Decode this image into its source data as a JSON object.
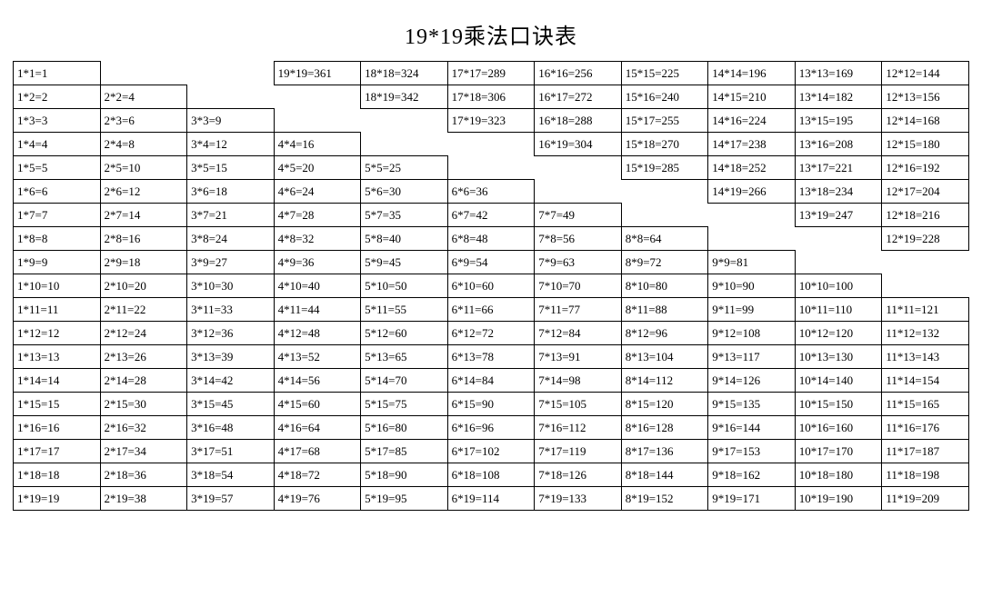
{
  "title": "19*19乘法口诀表",
  "table": {
    "cols": 11,
    "background_color": "#ffffff",
    "border_color": "#000000",
    "title_fontsize": 24,
    "cell_fontsize": 13,
    "rows": [
      [
        "1*1=1",
        "",
        "",
        "19*19=361",
        "18*18=324",
        "17*17=289",
        "16*16=256",
        "15*15=225",
        "14*14=196",
        "13*13=169",
        "12*12=144"
      ],
      [
        "1*2=2",
        "2*2=4",
        "",
        "",
        "18*19=342",
        "17*18=306",
        "16*17=272",
        "15*16=240",
        "14*15=210",
        "13*14=182",
        "12*13=156"
      ],
      [
        "1*3=3",
        "2*3=6",
        "3*3=9",
        "",
        "",
        "17*19=323",
        "16*18=288",
        "15*17=255",
        "14*16=224",
        "13*15=195",
        "12*14=168"
      ],
      [
        "1*4=4",
        "2*4=8",
        "3*4=12",
        "4*4=16",
        "",
        "",
        "16*19=304",
        "15*18=270",
        "14*17=238",
        "13*16=208",
        "12*15=180"
      ],
      [
        "1*5=5",
        "2*5=10",
        "3*5=15",
        "4*5=20",
        "5*5=25",
        "",
        "",
        "15*19=285",
        "14*18=252",
        "13*17=221",
        "12*16=192"
      ],
      [
        "1*6=6",
        "2*6=12",
        "3*6=18",
        "4*6=24",
        "5*6=30",
        "6*6=36",
        "",
        "",
        "14*19=266",
        "13*18=234",
        "12*17=204"
      ],
      [
        "1*7=7",
        "2*7=14",
        "3*7=21",
        "4*7=28",
        "5*7=35",
        "6*7=42",
        "7*7=49",
        "",
        "",
        "13*19=247",
        "12*18=216"
      ],
      [
        "1*8=8",
        "2*8=16",
        "3*8=24",
        "4*8=32",
        "5*8=40",
        "6*8=48",
        "7*8=56",
        "8*8=64",
        "",
        "",
        "12*19=228"
      ],
      [
        "1*9=9",
        "2*9=18",
        "3*9=27",
        "4*9=36",
        "5*9=45",
        "6*9=54",
        "7*9=63",
        "8*9=72",
        "9*9=81",
        "",
        ""
      ],
      [
        "1*10=10",
        "2*10=20",
        "3*10=30",
        "4*10=40",
        "5*10=50",
        "6*10=60",
        "7*10=70",
        "8*10=80",
        "9*10=90",
        "10*10=100",
        ""
      ],
      [
        "1*11=11",
        "2*11=22",
        "3*11=33",
        "4*11=44",
        "5*11=55",
        "6*11=66",
        "7*11=77",
        "8*11=88",
        "9*11=99",
        "10*11=110",
        "11*11=121"
      ],
      [
        "1*12=12",
        "2*12=24",
        "3*12=36",
        "4*12=48",
        "5*12=60",
        "6*12=72",
        "7*12=84",
        "8*12=96",
        "9*12=108",
        "10*12=120",
        "11*12=132"
      ],
      [
        "1*13=13",
        "2*13=26",
        "3*13=39",
        "4*13=52",
        "5*13=65",
        "6*13=78",
        "7*13=91",
        "8*13=104",
        "9*13=117",
        "10*13=130",
        "11*13=143"
      ],
      [
        "1*14=14",
        "2*14=28",
        "3*14=42",
        "4*14=56",
        "5*14=70",
        "6*14=84",
        "7*14=98",
        "8*14=112",
        "9*14=126",
        "10*14=140",
        "11*14=154"
      ],
      [
        "1*15=15",
        "2*15=30",
        "3*15=45",
        "4*15=60",
        "5*15=75",
        "6*15=90",
        "7*15=105",
        "8*15=120",
        "9*15=135",
        "10*15=150",
        "11*15=165"
      ],
      [
        "1*16=16",
        "2*16=32",
        "3*16=48",
        "4*16=64",
        "5*16=80",
        "6*16=96",
        "7*16=112",
        "8*16=128",
        "9*16=144",
        "10*16=160",
        "11*16=176"
      ],
      [
        "1*17=17",
        "2*17=34",
        "3*17=51",
        "4*17=68",
        "5*17=85",
        "6*17=102",
        "7*17=119",
        "8*17=136",
        "9*17=153",
        "10*17=170",
        "11*17=187"
      ],
      [
        "1*18=18",
        "2*18=36",
        "3*18=54",
        "4*18=72",
        "5*18=90",
        "6*18=108",
        "7*18=126",
        "8*18=144",
        "9*18=162",
        "10*18=180",
        "11*18=198"
      ],
      [
        "1*19=19",
        "2*19=38",
        "3*19=57",
        "4*19=76",
        "5*19=95",
        "6*19=114",
        "7*19=133",
        "8*19=152",
        "9*19=171",
        "10*19=190",
        "11*19=209"
      ]
    ]
  }
}
